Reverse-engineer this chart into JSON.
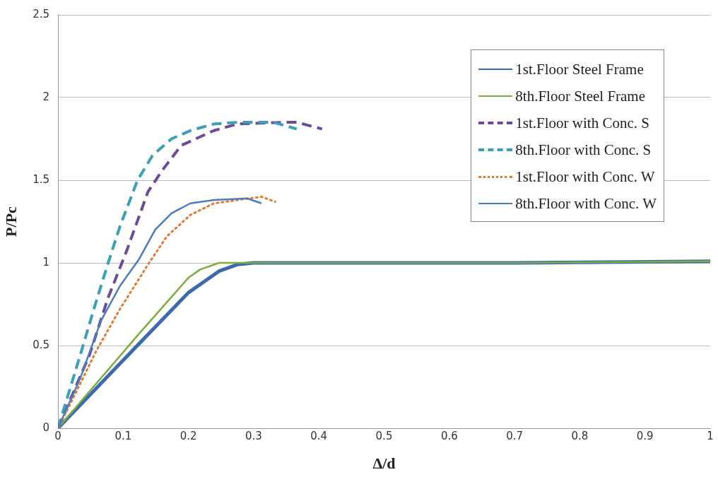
{
  "chart_data": {
    "type": "line",
    "xlabel": "Δ/d",
    "ylabel": "P/Pc",
    "xlim": [
      0,
      1
    ],
    "ylim": [
      0,
      2.5
    ],
    "xticks": [
      0,
      0.1,
      0.2,
      0.3,
      0.4,
      0.5,
      0.6,
      0.7,
      0.8,
      0.9,
      1
    ],
    "yticks": [
      0,
      0.5,
      1,
      1.5,
      2,
      2.5
    ],
    "grid": "y",
    "legend": "top right",
    "marker": "none",
    "series": [
      {
        "name": "1st.Floor Steel Frame",
        "color": "#3a6ab0",
        "line_style": "solid",
        "x": [
          0,
          0.124,
          0.2,
          0.247,
          0.275,
          0.3,
          0.5,
          0.7,
          1
        ],
        "values": [
          0,
          0.51,
          0.82,
          0.95,
          0.99,
          1,
          1,
          1,
          1.01
        ]
      },
      {
        "name": "8th.Floor Steel Frame",
        "color": "#7dab3c",
        "line_style": "solid",
        "x": [
          0,
          0.124,
          0.2,
          0.218,
          0.247,
          0.3,
          0.5,
          0.7,
          1
        ],
        "values": [
          0,
          0.57,
          0.91,
          0.96,
          1,
          1,
          1,
          1,
          1.01
        ]
      },
      {
        "name": "1st.Floor with Conc. S",
        "color": "#6e4a9a",
        "line_style": "dashed",
        "x": [
          0,
          0.048,
          0.077,
          0.106,
          0.138,
          0.16,
          0.189,
          0.239,
          0.275,
          0.348,
          0.366,
          0.405
        ],
        "values": [
          0,
          0.44,
          0.79,
          1.08,
          1.43,
          1.56,
          1.71,
          1.8,
          1.84,
          1.85,
          1.85,
          1.81
        ]
      },
      {
        "name": "8th.Floor with Conc. S",
        "color": "#3a9fb8",
        "line_style": "dashed",
        "x": [
          0,
          0.034,
          0.055,
          0.077,
          0.095,
          0.122,
          0.145,
          0.174,
          0.203,
          0.239,
          0.275,
          0.33,
          0.366
        ],
        "values": [
          0,
          0.44,
          0.72,
          1,
          1.22,
          1.5,
          1.65,
          1.75,
          1.8,
          1.84,
          1.85,
          1.85,
          1.81
        ]
      },
      {
        "name": "1st.Floor with Conc. W",
        "color": "#e8762c",
        "line_style": "dotted",
        "x": [
          0,
          0.023,
          0.059,
          0.095,
          0.138,
          0.167,
          0.203,
          0.239,
          0.275,
          0.312,
          0.333
        ],
        "values": [
          0,
          0.18,
          0.47,
          0.72,
          0.99,
          1.16,
          1.29,
          1.36,
          1.38,
          1.4,
          1.37
        ]
      },
      {
        "name": "8th.Floor with Conc. W",
        "color": "#4a7cc0",
        "line_style": "solid",
        "x": [
          0,
          0.034,
          0.066,
          0.095,
          0.124,
          0.149,
          0.174,
          0.203,
          0.239,
          0.29,
          0.312
        ],
        "values": [
          0,
          0.3,
          0.65,
          0.86,
          1.02,
          1.2,
          1.3,
          1.36,
          1.38,
          1.39,
          1.36
        ]
      }
    ]
  }
}
